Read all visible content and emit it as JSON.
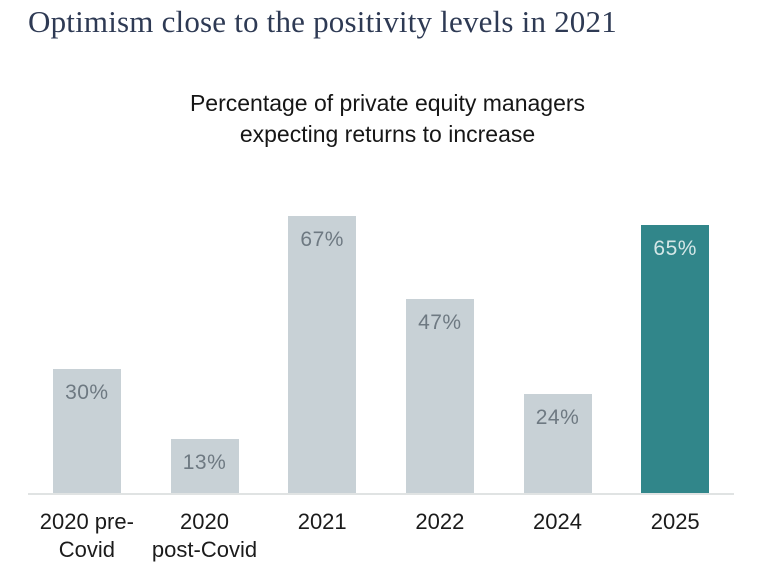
{
  "page": {
    "title": "Optimism close to the positivity levels in 2021"
  },
  "chart_data": {
    "type": "bar",
    "title": "Percentage of private equity managers expecting returns to increase",
    "title_lines": [
      "Percentage of private equity managers",
      "expecting returns to increase"
    ],
    "categories": [
      "2020 pre-Covid",
      "2020 post-Covid",
      "2021",
      "2022",
      "2024",
      "2025"
    ],
    "tick_label_lines": [
      [
        "2020 pre-",
        "Covid"
      ],
      [
        "2020",
        "post-Covid"
      ],
      [
        "2021"
      ],
      [
        "2022"
      ],
      [
        "2024"
      ],
      [
        "2025"
      ]
    ],
    "values": [
      30,
      13,
      67,
      47,
      24,
      65
    ],
    "data_labels": [
      "30%",
      "13%",
      "67%",
      "47%",
      "24%",
      "65%"
    ],
    "xlabel": "",
    "ylabel": "",
    "ylim": [
      0,
      100
    ],
    "grid": false,
    "legend": false,
    "highlight_category": "2025",
    "highlight_index": 5,
    "colors": {
      "bar": "#c8d1d6",
      "highlight": "#31868a",
      "bar_label": "#6e7982",
      "highlight_label": "#d4e7e7",
      "title": "#2e3a54",
      "axis_line": "#e0e3e3"
    }
  }
}
